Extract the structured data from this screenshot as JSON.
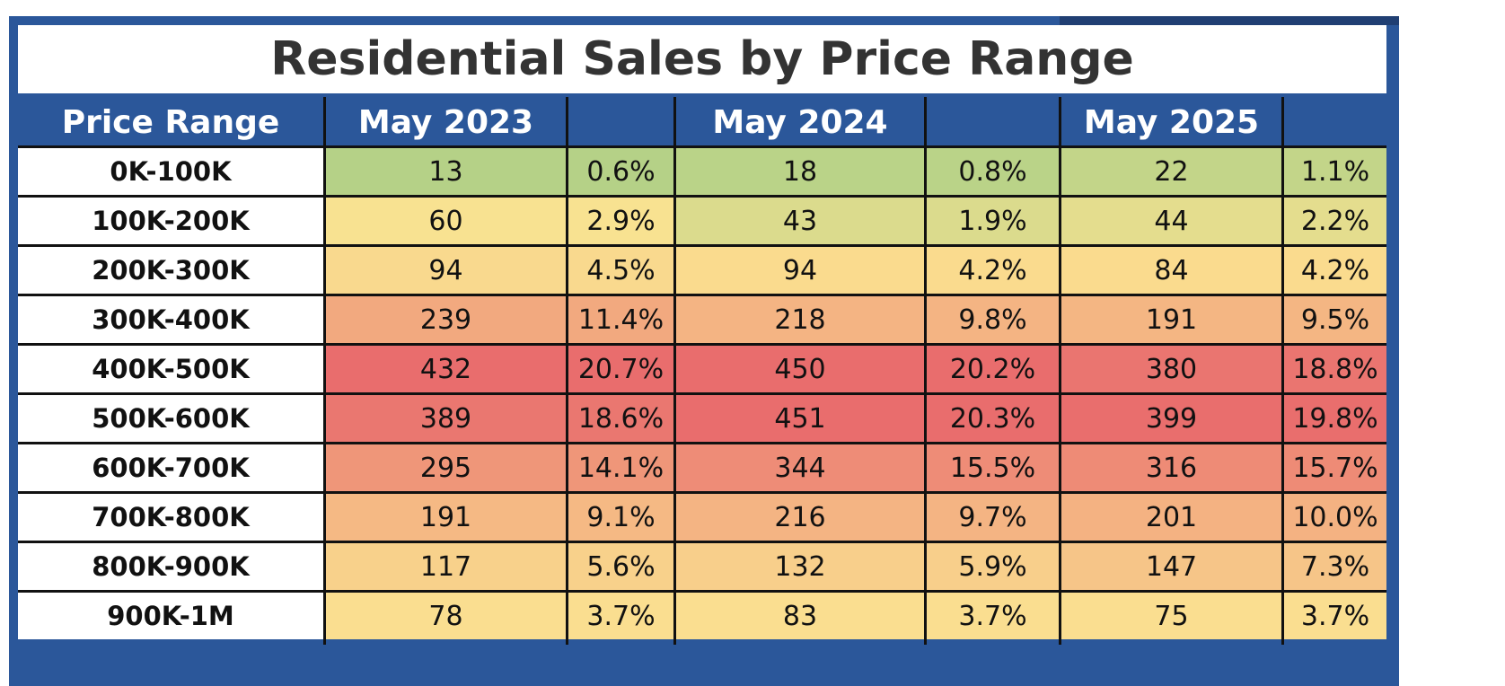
{
  "title": "Residential Sales by Price Range",
  "header": {
    "col0": "Price Range",
    "col1": "May 2023",
    "col2": "",
    "col3": "May 2024",
    "col4": "",
    "col5": "May 2025",
    "col6": ""
  },
  "rows": [
    {
      "range": "0K-100K",
      "c2023": "13",
      "p2023": "0.6%",
      "c2024": "18",
      "p2024": "0.8%",
      "c2025": "22",
      "p2025": "1.1%"
    },
    {
      "range": "100K-200K",
      "c2023": "60",
      "p2023": "2.9%",
      "c2024": "43",
      "p2024": "1.9%",
      "c2025": "44",
      "p2025": "2.2%"
    },
    {
      "range": "200K-300K",
      "c2023": "94",
      "p2023": "4.5%",
      "c2024": "94",
      "p2024": "4.2%",
      "c2025": "84",
      "p2025": "4.2%"
    },
    {
      "range": "300K-400K",
      "c2023": "239",
      "p2023": "11.4%",
      "c2024": "218",
      "p2024": "9.8%",
      "c2025": "191",
      "p2025": "9.5%"
    },
    {
      "range": "400K-500K",
      "c2023": "432",
      "p2023": "20.7%",
      "c2024": "450",
      "p2024": "20.2%",
      "c2025": "380",
      "p2025": "18.8%"
    },
    {
      "range": "500K-600K",
      "c2023": "389",
      "p2023": "18.6%",
      "c2024": "451",
      "p2024": "20.3%",
      "c2025": "399",
      "p2025": "19.8%"
    },
    {
      "range": "600K-700K",
      "c2023": "295",
      "p2023": "14.1%",
      "c2024": "344",
      "p2024": "15.5%",
      "c2025": "316",
      "p2025": "15.7%"
    },
    {
      "range": "700K-800K",
      "c2023": "191",
      "p2023": "9.1%",
      "c2024": "216",
      "p2024": "9.7%",
      "c2025": "201",
      "p2025": "10.0%"
    },
    {
      "range": "800K-900K",
      "c2023": "117",
      "p2023": "5.6%",
      "c2024": "132",
      "p2024": "5.9%",
      "c2025": "147",
      "p2025": "7.3%"
    },
    {
      "range": "900K-1M",
      "c2023": "78",
      "p2023": "3.7%",
      "c2024": "83",
      "p2024": "3.7%",
      "c2025": "75",
      "p2025": "3.7%"
    }
  ],
  "colors": {
    "header_bg": "#2b579a",
    "header_text": "#ffffff",
    "title_text": "#333333",
    "scale_low": "#a3cd85",
    "scale_mid": "#fbe391",
    "scale_high": "#e96d6d"
  },
  "chart_data": {
    "type": "table",
    "title": "Residential Sales by Price Range",
    "columns": [
      "Price Range",
      "May 2023",
      "",
      "May 2024",
      "",
      "May 2025",
      ""
    ],
    "categories": [
      "0K-100K",
      "100K-200K",
      "200K-300K",
      "300K-400K",
      "400K-500K",
      "500K-600K",
      "600K-700K",
      "700K-800K",
      "800K-900K",
      "900K-1M"
    ],
    "series": [
      {
        "name": "May 2023",
        "values": [
          13,
          60,
          94,
          239,
          432,
          389,
          295,
          191,
          117,
          78
        ],
        "percent": [
          0.6,
          2.9,
          4.5,
          11.4,
          20.7,
          18.6,
          14.1,
          9.1,
          5.6,
          3.7
        ]
      },
      {
        "name": "May 2024",
        "values": [
          18,
          43,
          94,
          218,
          450,
          451,
          344,
          216,
          132,
          83
        ],
        "percent": [
          0.8,
          1.9,
          4.2,
          9.8,
          20.2,
          20.3,
          15.5,
          9.7,
          5.9,
          3.7
        ]
      },
      {
        "name": "May 2025",
        "values": [
          22,
          44,
          84,
          191,
          380,
          399,
          316,
          201,
          147,
          75
        ],
        "percent": [
          1.1,
          2.2,
          4.2,
          9.5,
          18.8,
          19.8,
          15.7,
          10.0,
          7.3,
          3.7
        ]
      }
    ]
  }
}
